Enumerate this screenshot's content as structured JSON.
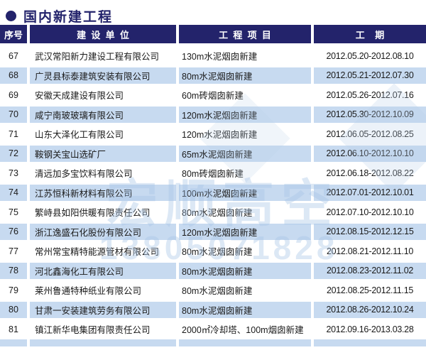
{
  "title": "国内新建工程",
  "table": {
    "headers": [
      "序号",
      "建  设  单  位",
      "工  程  项  目",
      "工    期"
    ],
    "rows": [
      {
        "no": "67",
        "company": "武汉常阳新力建设工程有限公司",
        "project": "130m水泥烟囱新建",
        "period": "2012.05.20-2012.08.10"
      },
      {
        "no": "68",
        "company": "广灵县标泰建筑安装有限公司",
        "project": "80m水泥烟囱新建",
        "period": "2012.05.21-2012.07.30"
      },
      {
        "no": "69",
        "company": "安徽天成建设有限公司",
        "project": "60m砖烟囱新建",
        "period": "2012.05.26-2012.07.16"
      },
      {
        "no": "70",
        "company": "咸宁南玻玻璃有限公司",
        "project": "120m水泥烟囱新建",
        "period": "2012.05.30-2012.10.09"
      },
      {
        "no": "71",
        "company": "山东大泽化工有限公司",
        "project": "120m水泥烟囱新建",
        "period": "2012.06.05-2012.08.25"
      },
      {
        "no": "72",
        "company": "鞍钢关宝山选矿厂",
        "project": "65m水泥烟囱新建",
        "period": "2012.06.10-2012.10.10"
      },
      {
        "no": "73",
        "company": "清远加多宝饮料有限公司",
        "project": "80m砖烟囱新建",
        "period": "2012.06.18-2012.08.22"
      },
      {
        "no": "74",
        "company": "江苏恒科新材料有限公司",
        "project": "100m水泥烟囱新建",
        "period": "2012.07.01-2012.10.01"
      },
      {
        "no": "75",
        "company": "繁峙县如阳供暖有限责任公司",
        "project": "80m水泥烟囱新建",
        "period": "2012.07.10-2012.10.10"
      },
      {
        "no": "76",
        "company": "浙江逸盛石化股份有限公司",
        "project": "120m水泥烟囱新建",
        "period": "2012.08.15-2012.12.15"
      },
      {
        "no": "77",
        "company": "常州常宝精特能源管材有限公司",
        "project": "80m水泥烟囱新建",
        "period": "2012.08.21-2012.11.10"
      },
      {
        "no": "78",
        "company": "河北鑫海化工有限公司",
        "project": "80m水泥烟囱新建",
        "period": "2012.08.23-2012.11.02"
      },
      {
        "no": "79",
        "company": "莱州鲁通特种纸业有限公司",
        "project": "80m水泥烟囱新建",
        "period": "2012.08.25-2012.11.15"
      },
      {
        "no": "80",
        "company": "甘肃一安装建筑劳务有限公司",
        "project": "80m水泥烟囱新建",
        "period": "2012.08.26-2012.10.24"
      },
      {
        "no": "81",
        "company": "镇江新华电集团有限责任公司",
        "project": "2000㎡冷却塔、100m烟囱新建",
        "period": "2012.09.16-2013.03.28"
      }
    ]
  },
  "watermark": {
    "text": "宏顺高空",
    "phone": "13805071828"
  },
  "colors": {
    "navy": "#23236b",
    "row_alt": "#c7daf0",
    "watermark": "#a6c3e6",
    "text": "#1a1a1a"
  }
}
